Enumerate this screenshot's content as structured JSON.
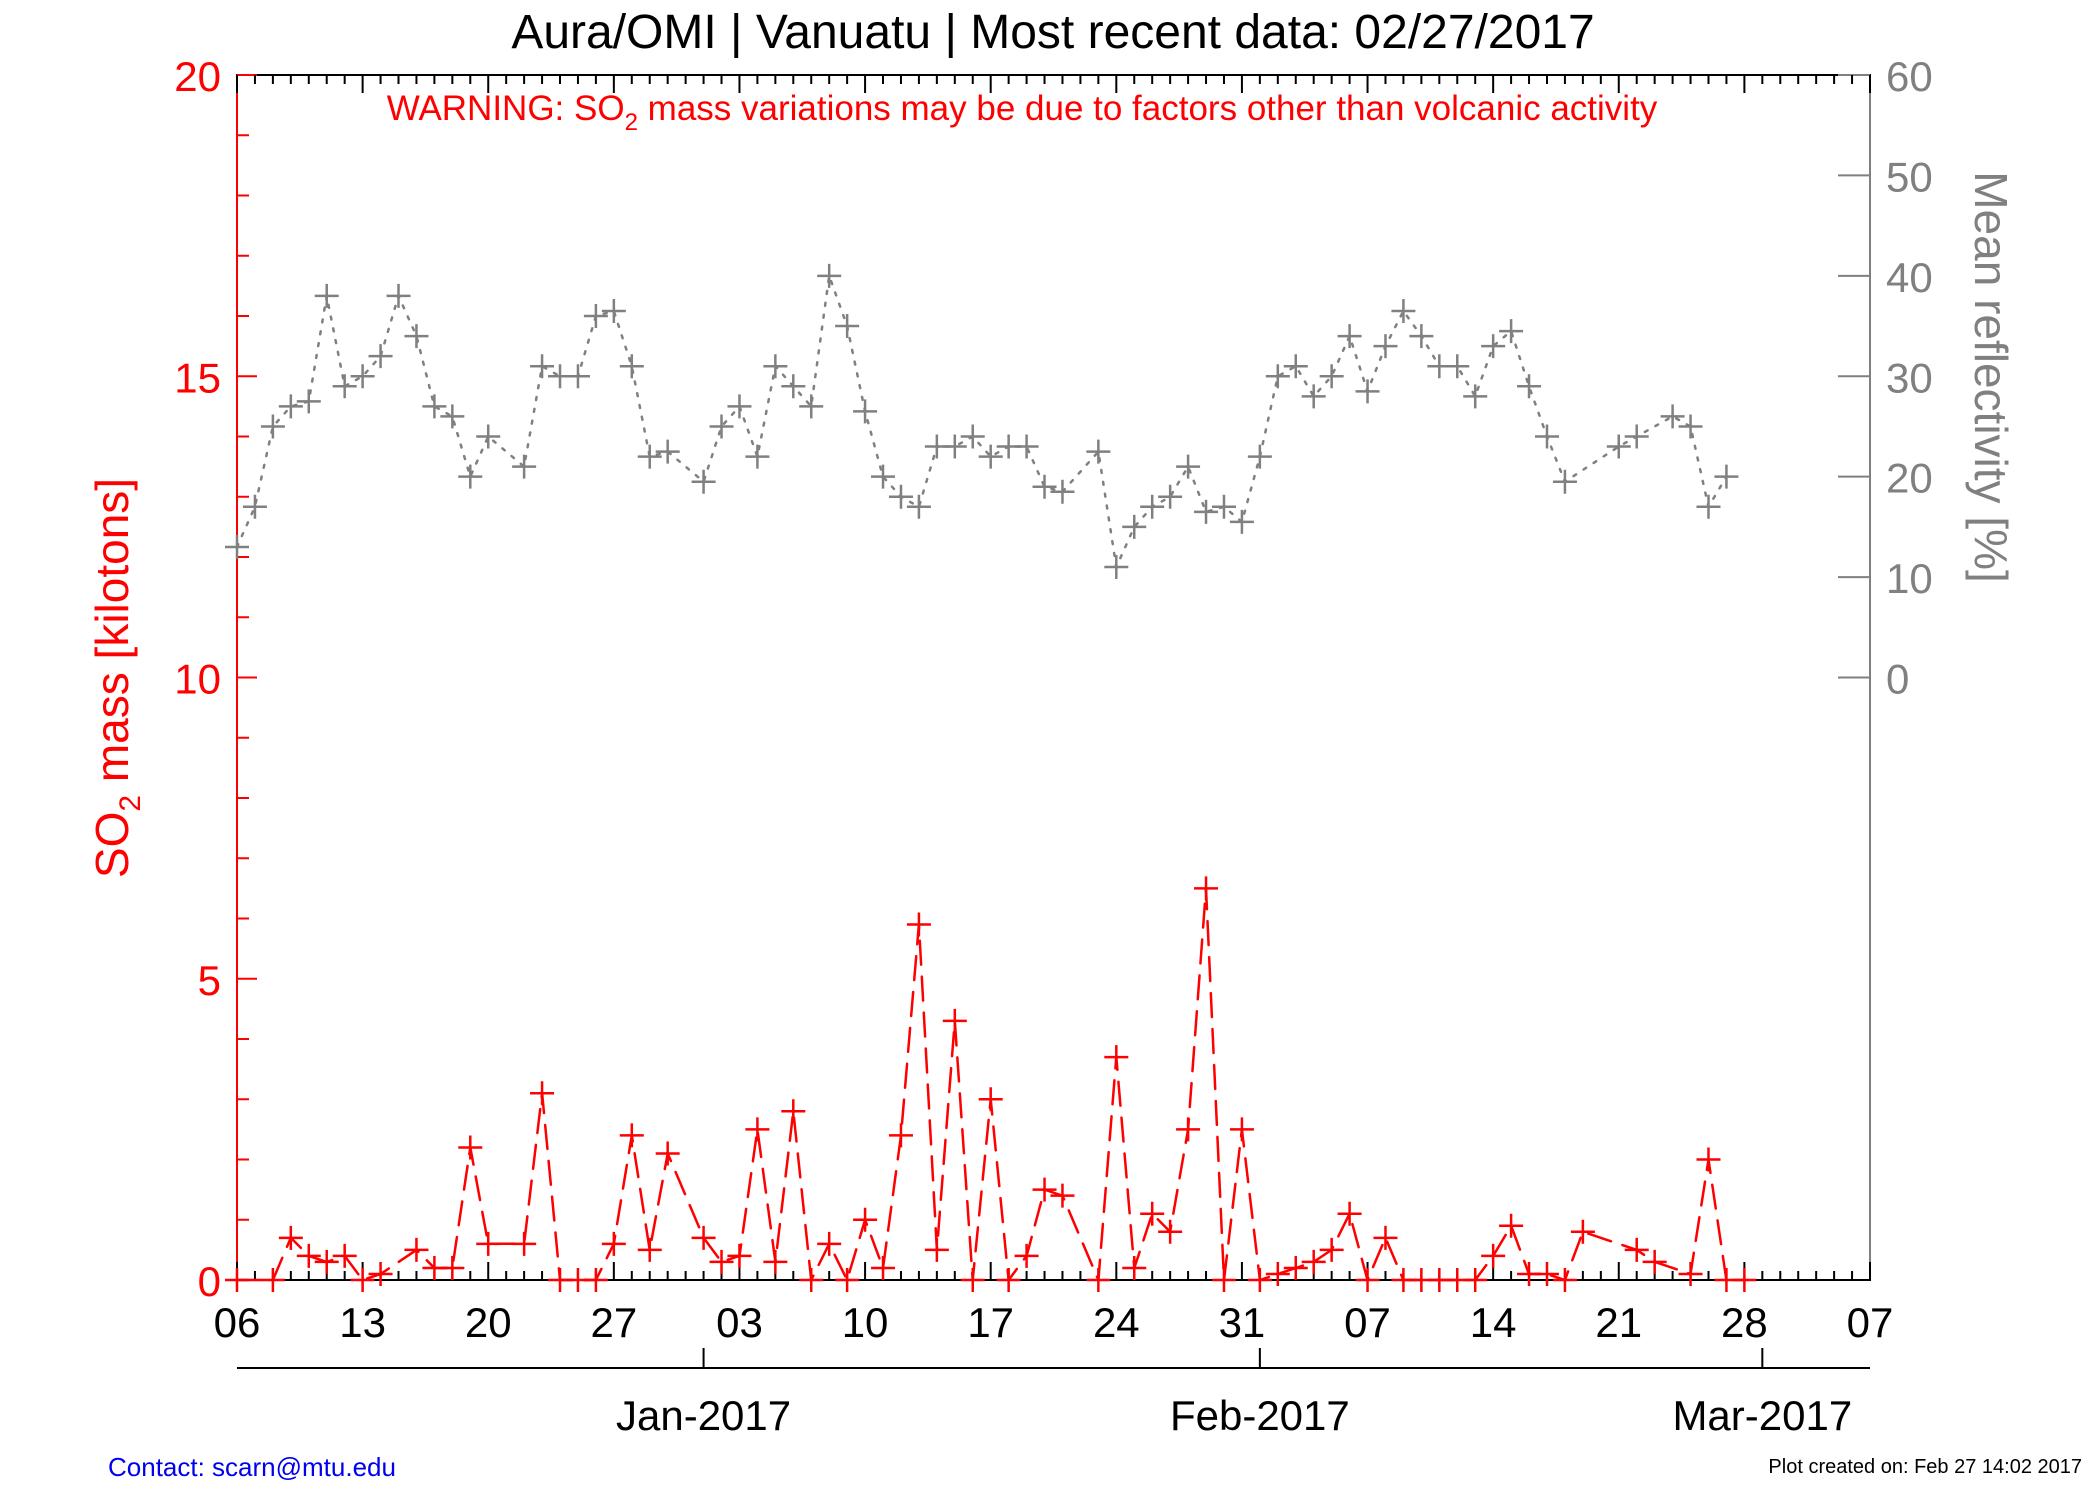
{
  "header": {
    "title": "Aura/OMI | Vanuatu | Most recent data: 02/27/2017",
    "warning": "WARNING: SO",
    "warning_sub": "2",
    "warning_rest": " mass variations may be due to factors other than volcanic activity"
  },
  "footer": {
    "contact": "Contact: scarn@mtu.edu",
    "created": "Plot created on: Feb 27 14:02 2017"
  },
  "colors": {
    "so2": "#ff0000",
    "reflectivity": "#808080",
    "axis": "#000000",
    "contact": "#0000ee"
  },
  "chart_data": {
    "type": "line",
    "title": "Aura/OMI | Vanuatu | Most recent data: 02/27/2017",
    "x_range": [
      "2016-12-06",
      "2017-03-07"
    ],
    "day_tick_labels": [
      "06",
      "13",
      "20",
      "27",
      "03",
      "10",
      "17",
      "24",
      "31",
      "07",
      "14",
      "21",
      "28",
      "07"
    ],
    "month_tick_labels": [
      "Jan-2017",
      "Feb-2017",
      "Mar-2017"
    ],
    "left_axis": {
      "label_main": "SO",
      "label_sub": "2",
      "label_rest": " mass [kilotons]",
      "ylim": [
        0,
        20
      ],
      "ticks": [
        0,
        5,
        10,
        15,
        20
      ]
    },
    "right_axis": {
      "label": "Mean reflectivity [%]",
      "ylim": [
        -60,
        60
      ],
      "ticks": [
        0,
        10,
        20,
        30,
        40,
        50,
        60
      ]
    },
    "series": [
      {
        "name": "SO2 mass [kilotons]",
        "axis": "left",
        "style": "dashed",
        "color": "#ff0000",
        "points": [
          [
            "2016-12-06",
            0.0
          ],
          [
            "2016-12-08",
            0.0
          ],
          [
            "2016-12-09",
            0.7
          ],
          [
            "2016-12-10",
            0.4
          ],
          [
            "2016-12-11",
            0.3
          ],
          [
            "2016-12-12",
            0.4
          ],
          [
            "2016-12-13",
            0.0
          ],
          [
            "2016-12-14",
            0.1
          ],
          [
            "2016-12-16",
            0.5
          ],
          [
            "2016-12-17",
            0.2
          ],
          [
            "2016-12-18",
            0.2
          ],
          [
            "2016-12-19",
            2.2
          ],
          [
            "2016-12-20",
            0.6
          ],
          [
            "2016-12-22",
            0.6
          ],
          [
            "2016-12-23",
            3.1
          ],
          [
            "2016-12-24",
            0.0
          ],
          [
            "2016-12-25",
            0.0
          ],
          [
            "2016-12-26",
            0.0
          ],
          [
            "2016-12-27",
            0.6
          ],
          [
            "2016-12-28",
            2.4
          ],
          [
            "2016-12-29",
            0.5
          ],
          [
            "2016-12-30",
            2.1
          ],
          [
            "2017-01-01",
            0.7
          ],
          [
            "2017-01-02",
            0.3
          ],
          [
            "2017-01-03",
            0.4
          ],
          [
            "2017-01-04",
            2.5
          ],
          [
            "2017-01-05",
            0.3
          ],
          [
            "2017-01-06",
            2.8
          ],
          [
            "2017-01-07",
            0.0
          ],
          [
            "2017-01-08",
            0.6
          ],
          [
            "2017-01-09",
            0.0
          ],
          [
            "2017-01-10",
            1.0
          ],
          [
            "2017-01-11",
            0.2
          ],
          [
            "2017-01-12",
            2.4
          ],
          [
            "2017-01-13",
            5.9
          ],
          [
            "2017-01-14",
            0.5
          ],
          [
            "2017-01-15",
            4.3
          ],
          [
            "2017-01-16",
            0.0
          ],
          [
            "2017-01-17",
            3.0
          ],
          [
            "2017-01-18",
            0.0
          ],
          [
            "2017-01-19",
            0.4
          ],
          [
            "2017-01-20",
            1.5
          ],
          [
            "2017-01-21",
            1.4
          ],
          [
            "2017-01-23",
            0.0
          ],
          [
            "2017-01-24",
            3.7
          ],
          [
            "2017-01-25",
            0.2
          ],
          [
            "2017-01-26",
            1.1
          ],
          [
            "2017-01-27",
            0.8
          ],
          [
            "2017-01-28",
            2.5
          ],
          [
            "2017-01-29",
            6.5
          ],
          [
            "2017-01-30",
            0.0
          ],
          [
            "2017-01-31",
            2.5
          ],
          [
            "2017-02-01",
            0.0
          ],
          [
            "2017-02-02",
            0.1
          ],
          [
            "2017-02-03",
            0.2
          ],
          [
            "2017-02-04",
            0.3
          ],
          [
            "2017-02-05",
            0.5
          ],
          [
            "2017-02-06",
            1.1
          ],
          [
            "2017-02-07",
            0.0
          ],
          [
            "2017-02-08",
            0.7
          ],
          [
            "2017-02-09",
            0.0
          ],
          [
            "2017-02-10",
            0.0
          ],
          [
            "2017-02-11",
            0.0
          ],
          [
            "2017-02-12",
            0.0
          ],
          [
            "2017-02-13",
            0.0
          ],
          [
            "2017-02-14",
            0.4
          ],
          [
            "2017-02-15",
            0.9
          ],
          [
            "2017-02-16",
            0.1
          ],
          [
            "2017-02-17",
            0.1
          ],
          [
            "2017-02-18",
            0.0
          ],
          [
            "2017-02-19",
            0.8
          ],
          [
            "2017-02-22",
            0.5
          ],
          [
            "2017-02-23",
            0.3
          ],
          [
            "2017-02-25",
            0.1
          ],
          [
            "2017-02-26",
            2.0
          ],
          [
            "2017-02-27",
            0.0
          ],
          [
            "2017-02-28",
            0.0
          ]
        ]
      },
      {
        "name": "Mean reflectivity [%]",
        "axis": "right",
        "style": "dotted",
        "color": "#808080",
        "points": [
          [
            "2016-12-06",
            13
          ],
          [
            "2016-12-07",
            17
          ],
          [
            "2016-12-08",
            25
          ],
          [
            "2016-12-09",
            27
          ],
          [
            "2016-12-10",
            27.5
          ],
          [
            "2016-12-11",
            38
          ],
          [
            "2016-12-12",
            29
          ],
          [
            "2016-12-13",
            30
          ],
          [
            "2016-12-14",
            32
          ],
          [
            "2016-12-15",
            38
          ],
          [
            "2016-12-16",
            34
          ],
          [
            "2016-12-17",
            27
          ],
          [
            "2016-12-18",
            26
          ],
          [
            "2016-12-19",
            20
          ],
          [
            "2016-12-20",
            24
          ],
          [
            "2016-12-22",
            21
          ],
          [
            "2016-12-23",
            31
          ],
          [
            "2016-12-24",
            30
          ],
          [
            "2016-12-25",
            30
          ],
          [
            "2016-12-26",
            36
          ],
          [
            "2016-12-27",
            36.5
          ],
          [
            "2016-12-28",
            31
          ],
          [
            "2016-12-29",
            22
          ],
          [
            "2016-12-30",
            22.5
          ],
          [
            "2017-01-01",
            19.5
          ],
          [
            "2017-01-02",
            25
          ],
          [
            "2017-01-03",
            27
          ],
          [
            "2017-01-04",
            22
          ],
          [
            "2017-01-05",
            31
          ],
          [
            "2017-01-06",
            29
          ],
          [
            "2017-01-07",
            27
          ],
          [
            "2017-01-08",
            40
          ],
          [
            "2017-01-09",
            35
          ],
          [
            "2017-01-10",
            26.5
          ],
          [
            "2017-01-11",
            20
          ],
          [
            "2017-01-12",
            18
          ],
          [
            "2017-01-13",
            17
          ],
          [
            "2017-01-14",
            23
          ],
          [
            "2017-01-15",
            23
          ],
          [
            "2017-01-16",
            24
          ],
          [
            "2017-01-17",
            22
          ],
          [
            "2017-01-18",
            23
          ],
          [
            "2017-01-19",
            23
          ],
          [
            "2017-01-20",
            19
          ],
          [
            "2017-01-21",
            18.5
          ],
          [
            "2017-01-23",
            22.5
          ],
          [
            "2017-01-24",
            11
          ],
          [
            "2017-01-25",
            15
          ],
          [
            "2017-01-26",
            17
          ],
          [
            "2017-01-27",
            18
          ],
          [
            "2017-01-28",
            21
          ],
          [
            "2017-01-29",
            16.5
          ],
          [
            "2017-01-30",
            17
          ],
          [
            "2017-01-31",
            15.5
          ],
          [
            "2017-02-01",
            22
          ],
          [
            "2017-02-02",
            30
          ],
          [
            "2017-02-03",
            31
          ],
          [
            "2017-02-04",
            28
          ],
          [
            "2017-02-05",
            30
          ],
          [
            "2017-02-06",
            34
          ],
          [
            "2017-02-07",
            28.5
          ],
          [
            "2017-02-08",
            33
          ],
          [
            "2017-02-09",
            36.5
          ],
          [
            "2017-02-10",
            34
          ],
          [
            "2017-02-11",
            31
          ],
          [
            "2017-02-12",
            31
          ],
          [
            "2017-02-13",
            28
          ],
          [
            "2017-02-14",
            33
          ],
          [
            "2017-02-15",
            34.5
          ],
          [
            "2017-02-16",
            29
          ],
          [
            "2017-02-17",
            24
          ],
          [
            "2017-02-18",
            19.5
          ],
          [
            "2017-02-21",
            23
          ],
          [
            "2017-02-22",
            24
          ],
          [
            "2017-02-24",
            26
          ],
          [
            "2017-02-25",
            25
          ],
          [
            "2017-02-26",
            17
          ],
          [
            "2017-02-27",
            20
          ]
        ]
      }
    ],
    "grid": false
  }
}
